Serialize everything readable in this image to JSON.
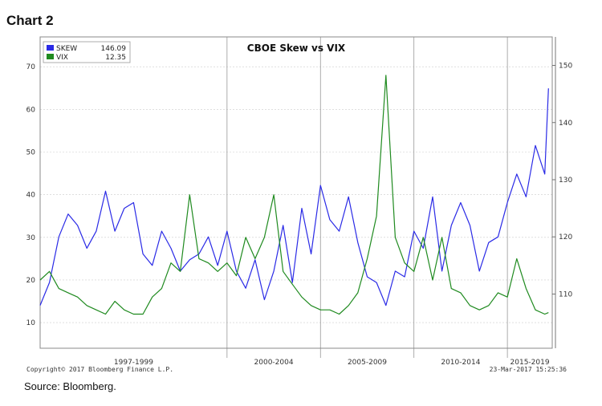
{
  "heading": "Chart 2",
  "source": "Source: Bloomberg.",
  "copyright": "Copyright© 2017 Bloomberg Finance L.P.",
  "timestamp": "23-Mar-2017 15:25:36",
  "colors": {
    "skew": "#2a2ae6",
    "vix": "#1f8a1f",
    "grid": "#cccccc"
  },
  "chart_data": {
    "type": "line",
    "title": "CBOE Skew vs VIX",
    "x_labels": [
      "1997-1999",
      "2000-2004",
      "2005-2009",
      "2010-2014",
      "2015-2019"
    ],
    "left_axis": {
      "ticks": [
        10,
        20,
        30,
        40,
        50,
        60,
        70
      ],
      "range": [
        4,
        77
      ]
    },
    "right_axis": {
      "ticks": [
        110,
        120,
        130,
        140,
        150
      ],
      "range": [
        100.5,
        155
      ]
    },
    "legend": [
      {
        "name": "SKEW",
        "value": "146.09"
      },
      {
        "name": "VIX",
        "value": "12.35"
      }
    ],
    "grid": true,
    "legend_position": "top-left",
    "series": [
      {
        "name": "SKEW",
        "axis": "right",
        "x": [
          1990,
          1990.5,
          1991,
          1991.5,
          1992,
          1992.5,
          1993,
          1993.5,
          1994,
          1994.5,
          1995,
          1995.5,
          1996,
          1996.5,
          1997,
          1997.5,
          1998,
          1998.5,
          1999,
          1999.5,
          2000,
          2000.5,
          2001,
          2001.5,
          2002,
          2002.5,
          2003,
          2003.5,
          2004,
          2004.5,
          2005,
          2005.5,
          2006,
          2006.5,
          2007,
          2007.5,
          2008,
          2008.5,
          2009,
          2009.5,
          2010,
          2010.5,
          2011,
          2011.5,
          2012,
          2012.5,
          2013,
          2013.5,
          2014,
          2014.5,
          2015,
          2015.5,
          2016,
          2016.5,
          2017,
          2017.2
        ],
        "y": [
          108,
          112,
          120,
          124,
          122,
          118,
          121,
          128,
          121,
          125,
          126,
          117,
          115,
          121,
          118,
          114,
          116,
          117,
          120,
          115,
          121,
          114,
          111,
          116,
          109,
          114,
          122,
          112,
          125,
          117,
          129,
          123,
          121,
          127,
          119,
          113,
          112,
          108,
          114,
          113,
          121,
          118,
          127,
          114,
          122,
          126,
          122,
          114,
          119,
          120,
          126,
          131,
          127,
          136,
          131,
          146
        ]
      },
      {
        "name": "VIX",
        "axis": "left",
        "x": [
          1990,
          1990.5,
          1991,
          1991.5,
          1992,
          1992.5,
          1993,
          1993.5,
          1994,
          1994.5,
          1995,
          1995.5,
          1996,
          1996.5,
          1997,
          1997.5,
          1998,
          1998.5,
          1999,
          1999.5,
          2000,
          2000.5,
          2001,
          2001.5,
          2002,
          2002.5,
          2003,
          2003.5,
          2004,
          2004.5,
          2005,
          2005.5,
          2006,
          2006.5,
          2007,
          2007.5,
          2008,
          2008.5,
          2009,
          2009.5,
          2010,
          2010.5,
          2011,
          2011.5,
          2012,
          2012.5,
          2013,
          2013.5,
          2014,
          2014.5,
          2015,
          2015.5,
          2016,
          2016.5,
          2017,
          2017.2
        ],
        "y": [
          20,
          22,
          18,
          17,
          16,
          14,
          13,
          12,
          15,
          13,
          12,
          12,
          16,
          18,
          24,
          22,
          40,
          25,
          24,
          22,
          24,
          21,
          30,
          25,
          30,
          40,
          22,
          19,
          16,
          14,
          13,
          13,
          12,
          14,
          17,
          25,
          35,
          68,
          30,
          24,
          22,
          30,
          20,
          30,
          18,
          17,
          14,
          13,
          14,
          17,
          16,
          25,
          18,
          13,
          12,
          12.35
        ]
      }
    ]
  }
}
